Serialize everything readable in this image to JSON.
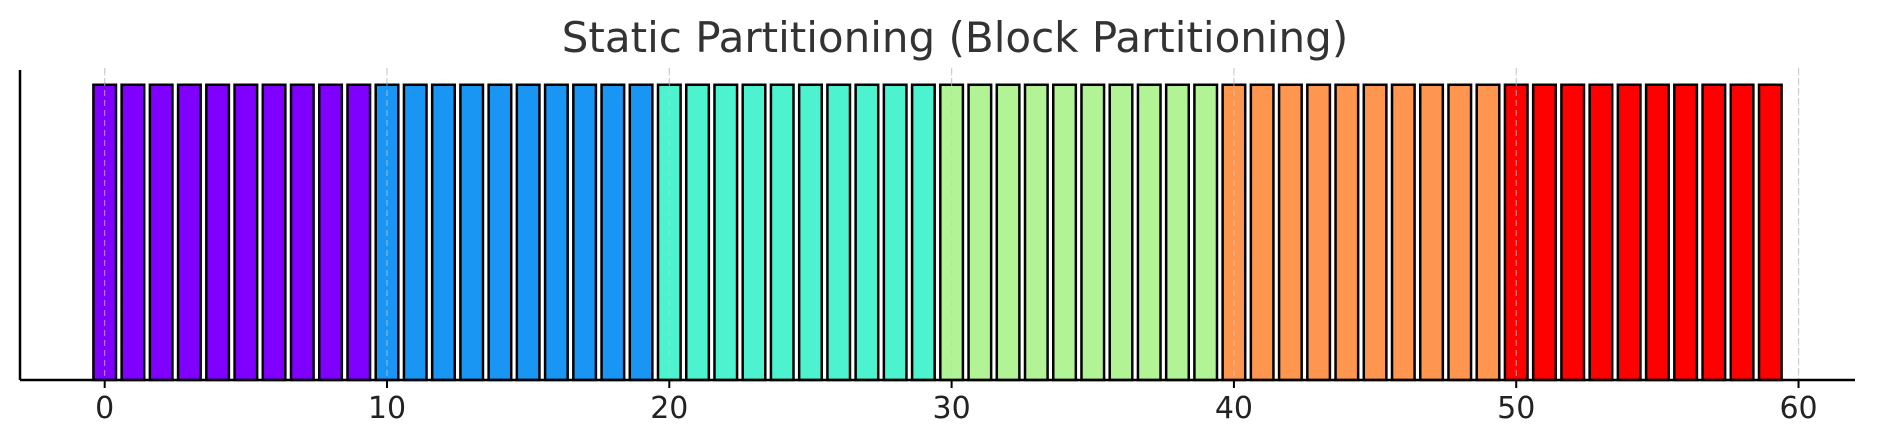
{
  "chart_data": {
    "type": "bar",
    "title": "Static Partitioning (Block Partitioning)",
    "xlabel": "",
    "ylabel": "",
    "x": [
      0,
      1,
      2,
      3,
      4,
      5,
      6,
      7,
      8,
      9,
      10,
      11,
      12,
      13,
      14,
      15,
      16,
      17,
      18,
      19,
      20,
      21,
      22,
      23,
      24,
      25,
      26,
      27,
      28,
      29,
      30,
      31,
      32,
      33,
      34,
      35,
      36,
      37,
      38,
      39,
      40,
      41,
      42,
      43,
      44,
      45,
      46,
      47,
      48,
      49,
      50,
      51,
      52,
      53,
      54,
      55,
      56,
      57,
      58,
      59
    ],
    "values": [
      1,
      1,
      1,
      1,
      1,
      1,
      1,
      1,
      1,
      1,
      1,
      1,
      1,
      1,
      1,
      1,
      1,
      1,
      1,
      1,
      1,
      1,
      1,
      1,
      1,
      1,
      1,
      1,
      1,
      1,
      1,
      1,
      1,
      1,
      1,
      1,
      1,
      1,
      1,
      1,
      1,
      1,
      1,
      1,
      1,
      1,
      1,
      1,
      1,
      1,
      1,
      1,
      1,
      1,
      1,
      1,
      1,
      1,
      1,
      1
    ],
    "blocks": [
      {
        "start": 0,
        "end": 9,
        "color": "#8000ff"
      },
      {
        "start": 10,
        "end": 19,
        "color": "#1996f3"
      },
      {
        "start": 20,
        "end": 29,
        "color": "#4df3ce"
      },
      {
        "start": 30,
        "end": 39,
        "color": "#b2f396"
      },
      {
        "start": 40,
        "end": 49,
        "color": "#ff964f"
      },
      {
        "start": 50,
        "end": 59,
        "color": "#ff0000"
      }
    ],
    "xlim": [
      -3,
      62
    ],
    "ylim": [
      0,
      1.05
    ],
    "xticks": [
      0,
      10,
      20,
      30,
      40,
      50,
      60
    ],
    "xtick_labels": [
      "0",
      "10",
      "20",
      "30",
      "40",
      "50",
      "60"
    ],
    "grid": "vertical dashed",
    "legend": "none",
    "bar_edge_color": "#000000",
    "grid_color": "#cccccc"
  }
}
